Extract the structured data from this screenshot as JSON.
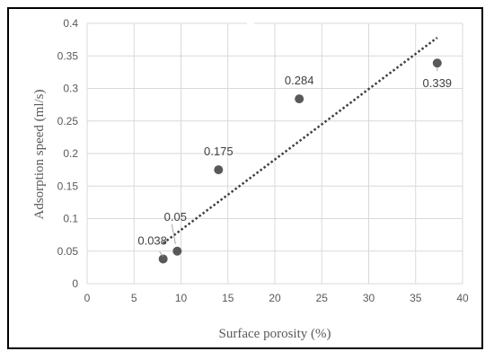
{
  "chart_data": {
    "type": "scatter",
    "title": "",
    "xlabel": "Surface porosity (%)",
    "ylabel": "Adsorption speed (ml/s)",
    "xlim": [
      0,
      40
    ],
    "ylim": [
      0,
      0.4
    ],
    "x_ticks": [
      "0",
      "5",
      "10",
      "15",
      "20",
      "25",
      "30",
      "35",
      "40"
    ],
    "y_ticks": [
      "0",
      "0.05",
      "0.1",
      "0.15",
      "0.2",
      "0.25",
      "0.3",
      "0.35",
      "0.4"
    ],
    "grid": true,
    "legend": "none",
    "points": [
      {
        "x": 8.1,
        "y": 0.038,
        "label": "0.038"
      },
      {
        "x": 9.6,
        "y": 0.05,
        "label": "0.05"
      },
      {
        "x": 14.0,
        "y": 0.175,
        "label": "0.175"
      },
      {
        "x": 22.6,
        "y": 0.284,
        "label": "0.284"
      },
      {
        "x": 37.3,
        "y": 0.339,
        "label": "0.339"
      }
    ],
    "trendline": {
      "style": "dotted",
      "x_start": 8.1,
      "y_start": 0.062,
      "x_end": 37.3,
      "y_end": 0.378
    },
    "colors": {
      "marker": "#595959",
      "trendline": "#404040",
      "grid": "#d9d9d9"
    }
  }
}
